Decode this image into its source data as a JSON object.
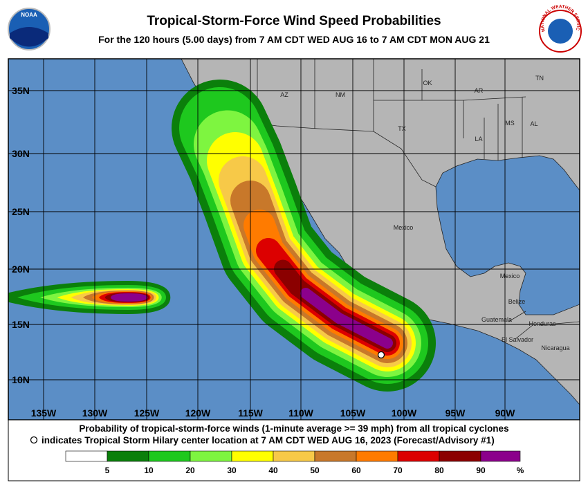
{
  "header": {
    "title": "Tropical-Storm-Force Wind Speed Probabilities",
    "subtitle": "For the 120 hours (5.00 days) from 7 AM CDT WED AUG 16 to 7 AM CDT MON AUG 21",
    "logo_left": "NOAA",
    "logo_right": "NATIONAL WEATHER SERVICE"
  },
  "map": {
    "lat_labels": [
      "35N",
      "30N",
      "25N",
      "20N",
      "15N",
      "10N"
    ],
    "lon_labels": [
      "135W",
      "130W",
      "125W",
      "120W",
      "115W",
      "110W",
      "105W",
      "100W",
      "95W",
      "90W"
    ],
    "places": [
      "AZ",
      "NM",
      "OK",
      "AR",
      "TN",
      "MS",
      "AL",
      "LA",
      "TX",
      "Mexico",
      "Mexico",
      "Belize",
      "Guatemala",
      "Honduras",
      "El Salvador",
      "Nicaragua"
    ]
  },
  "footer": {
    "line1": "Probability of tropical-storm-force winds (1-minute average >= 39 mph) from all tropical cyclones",
    "line2": "indicates Tropical Storm Hilary center location at 7 AM CDT WED AUG 16, 2023 (Forecast/Advisory #1)"
  },
  "legend": {
    "ticks": [
      5,
      10,
      20,
      30,
      40,
      50,
      60,
      70,
      80,
      90
    ],
    "unit": "%",
    "colors": [
      "#ffffff",
      "#0b7f0b",
      "#1ec81e",
      "#7ef540",
      "#ffff00",
      "#f7c948",
      "#c8782a",
      "#ff7b00",
      "#dc0000",
      "#8b0000",
      "#8b008b"
    ]
  }
}
